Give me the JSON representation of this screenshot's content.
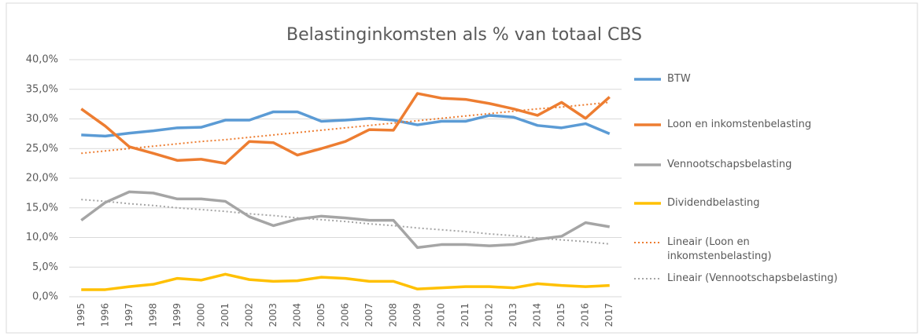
{
  "chart_data": {
    "type": "line",
    "title": "Belastinginkomsten als % van totaal CBS",
    "categories": [
      "1995",
      "1996",
      "1997",
      "1998",
      "1999",
      "2000",
      "2001",
      "2002",
      "2003",
      "2004",
      "2005",
      "2006",
      "2007",
      "2008",
      "2009",
      "2010",
      "2011",
      "2012",
      "2013",
      "2014",
      "2015",
      "2016",
      "2017"
    ],
    "series": [
      {
        "name": "BTW",
        "color": "#5b9bd5",
        "dash": false,
        "values": [
          27.3,
          27.1,
          27.6,
          28.0,
          28.5,
          28.6,
          29.8,
          29.8,
          31.2,
          31.2,
          29.6,
          29.8,
          30.1,
          29.8,
          29.0,
          29.6,
          29.6,
          30.6,
          30.3,
          28.9,
          28.5,
          29.2,
          27.5
        ]
      },
      {
        "name": "Loon en inkomstenbelasting",
        "color": "#ed7d31",
        "dash": false,
        "values": [
          31.7,
          28.8,
          25.3,
          24.2,
          23.0,
          23.2,
          22.5,
          26.2,
          26.0,
          23.9,
          25.0,
          26.2,
          28.2,
          28.1,
          34.3,
          33.5,
          33.3,
          32.6,
          31.7,
          30.6,
          32.8,
          30.1,
          33.7
        ]
      },
      {
        "name": "Vennootschapsbelasting",
        "color": "#a5a5a5",
        "dash": false,
        "values": [
          12.9,
          15.9,
          17.7,
          17.5,
          16.5,
          16.5,
          16.1,
          13.5,
          12.0,
          13.1,
          13.6,
          13.3,
          12.9,
          12.9,
          8.3,
          8.8,
          8.8,
          8.6,
          8.8,
          9.7,
          10.2,
          12.5,
          11.8
        ]
      },
      {
        "name": "Dividendbelasting",
        "color": "#ffc000",
        "dash": false,
        "values": [
          1.2,
          1.2,
          1.7,
          2.1,
          3.1,
          2.8,
          3.8,
          2.9,
          2.6,
          2.7,
          3.3,
          3.1,
          2.6,
          2.6,
          1.3,
          1.5,
          1.7,
          1.7,
          1.5,
          2.2,
          1.9,
          1.7,
          1.9
        ]
      },
      {
        "name": "Lineair (Loon en inkomstenbelasting)",
        "color": "#ed7d31",
        "dash": true,
        "values": [
          24.2,
          24.6,
          25.0,
          25.4,
          25.8,
          26.2,
          26.5,
          26.9,
          27.3,
          27.7,
          28.1,
          28.5,
          28.9,
          29.3,
          29.7,
          30.1,
          30.5,
          30.9,
          31.3,
          31.7,
          32.0,
          32.4,
          32.8
        ]
      },
      {
        "name": "Lineair (Vennootschapsbelasting)",
        "color": "#a5a5a5",
        "dash": true,
        "values": [
          16.4,
          16.1,
          15.7,
          15.4,
          15.0,
          14.7,
          14.4,
          14.0,
          13.7,
          13.3,
          13.0,
          12.7,
          12.3,
          12.0,
          11.6,
          11.3,
          11.0,
          10.6,
          10.3,
          9.9,
          9.6,
          9.3,
          8.9
        ]
      }
    ],
    "ylim": [
      0,
      40
    ],
    "yticks": [
      {
        "value": 0,
        "label": "0,0%"
      },
      {
        "value": 5,
        "label": "5,0%"
      },
      {
        "value": 10,
        "label": "10,0%"
      },
      {
        "value": 15,
        "label": "15,0%"
      },
      {
        "value": 20,
        "label": "20,0%"
      },
      {
        "value": 25,
        "label": "25,0%"
      },
      {
        "value": 30,
        "label": "30,0%"
      },
      {
        "value": 35,
        "label": "35,0%"
      },
      {
        "value": 40,
        "label": "40,0%"
      }
    ],
    "grid": true,
    "legend": "right"
  }
}
